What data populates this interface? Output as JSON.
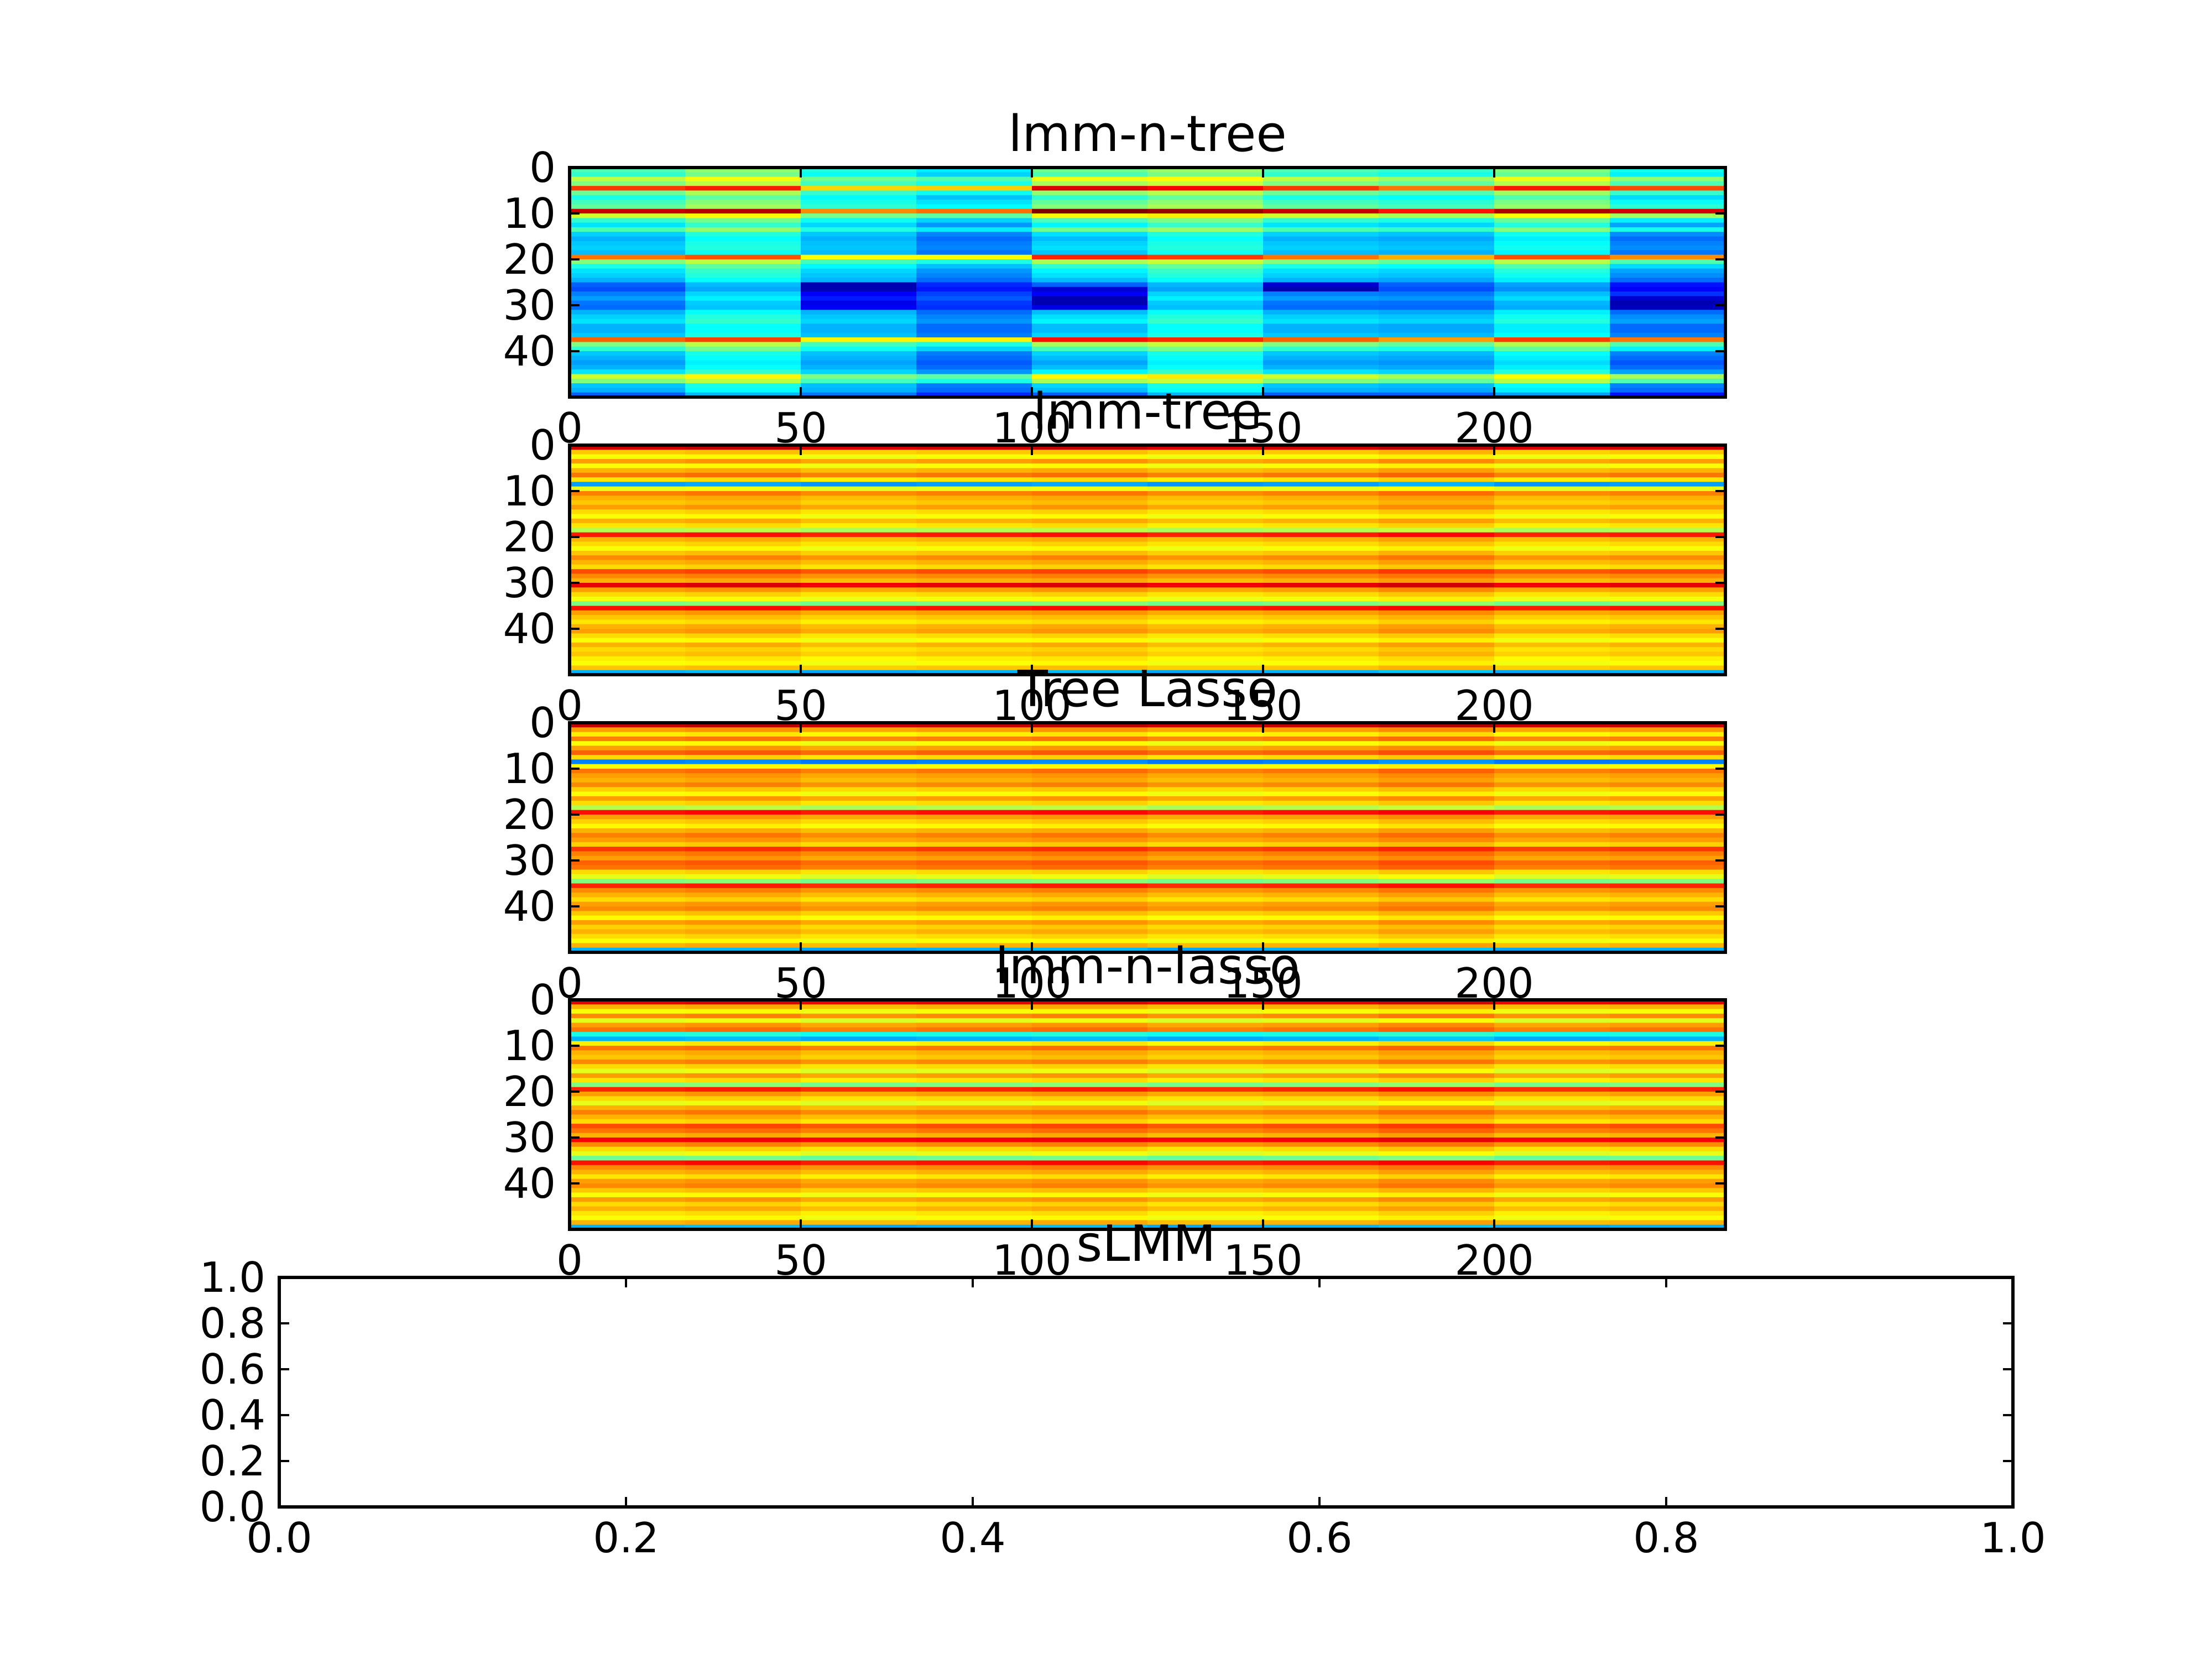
{
  "chart_data": [
    {
      "type": "heatmap",
      "title": "lmm-n-tree",
      "xlabel": "",
      "ylabel": "",
      "xlim": [
        0,
        250
      ],
      "ylim": [
        50,
        0
      ],
      "xticks": [
        0,
        50,
        100,
        150,
        200
      ],
      "yticks": [
        0,
        10,
        20,
        30,
        40
      ],
      "colormap": "jet",
      "n_rows": 50,
      "n_cols": 250,
      "column_block_width": 25,
      "value_range": [
        0,
        1
      ],
      "row_values": [
        0.45,
        0.42,
        0.56,
        0.5,
        0.82,
        0.48,
        0.4,
        0.44,
        0.47,
        0.93,
        0.58,
        0.42,
        0.35,
        0.45,
        0.33,
        0.3,
        0.32,
        0.33,
        0.31,
        0.76,
        0.5,
        0.4,
        0.35,
        0.33,
        0.3,
        0.22,
        0.2,
        0.25,
        0.28,
        0.24,
        0.23,
        0.3,
        0.33,
        0.35,
        0.3,
        0.3,
        0.32,
        0.78,
        0.5,
        0.42,
        0.32,
        0.3,
        0.28,
        0.3,
        0.35,
        0.58,
        0.5,
        0.32,
        0.3,
        0.22
      ],
      "block_offsets": [
        0,
        0.06,
        -0.06,
        -0.1,
        0.04,
        0.07,
        0,
        -0.03,
        0.05,
        -0.05
      ],
      "block_gain": [
        1,
        0.9,
        0.7,
        0.85,
        1.15,
        0.95,
        1,
        0.9,
        0.95,
        1.1
      ],
      "block_overrides": {
        "2": {
          "25": 0.05,
          "26": 0.05,
          "27": 0.12,
          "28": 0.15,
          "29": 0.1,
          "30": 0.12
        },
        "4": {
          "26": 0.08,
          "27": 0.12,
          "28": 0.05,
          "29": 0.05,
          "30": 0.1
        },
        "6": {
          "25": 0.08,
          "26": 0.05
        },
        "9": {
          "28": 0.08,
          "29": 0.05,
          "30": 0.06
        }
      }
    },
    {
      "type": "heatmap",
      "title": "lmm-tree",
      "xlabel": "",
      "ylabel": "",
      "xlim": [
        0,
        250
      ],
      "ylim": [
        50,
        0
      ],
      "xticks": [
        0,
        50,
        100,
        150,
        200
      ],
      "yticks": [
        0,
        10,
        20,
        30,
        40
      ],
      "colormap": "jet",
      "n_rows": 50,
      "n_cols": 250,
      "column_block_width": 25,
      "value_range": [
        0,
        1
      ],
      "row_values": [
        0.92,
        0.68,
        0.62,
        0.72,
        0.62,
        0.7,
        0.76,
        0.65,
        0.28,
        0.6,
        0.75,
        0.7,
        0.68,
        0.72,
        0.66,
        0.62,
        0.7,
        0.65,
        0.55,
        0.85,
        0.7,
        0.66,
        0.62,
        0.68,
        0.74,
        0.7,
        0.66,
        0.8,
        0.74,
        0.7,
        0.9,
        0.72,
        0.66,
        0.62,
        0.5,
        0.86,
        0.72,
        0.68,
        0.65,
        0.7,
        0.72,
        0.66,
        0.62,
        0.7,
        0.66,
        0.68,
        0.64,
        0.62,
        0.68,
        0.3
      ],
      "block_offsets": [
        0,
        0.01,
        -0.01,
        0,
        0.01,
        -0.01,
        0,
        0.02,
        -0.01,
        0
      ],
      "block_gain": [
        1,
        1,
        1,
        1,
        1,
        1,
        1,
        1,
        1,
        1
      ],
      "block_overrides": {}
    },
    {
      "type": "heatmap",
      "title": "Tree Lasso",
      "xlabel": "",
      "ylabel": "",
      "xlim": [
        0,
        250
      ],
      "ylim": [
        50,
        0
      ],
      "xticks": [
        0,
        50,
        100,
        150,
        200
      ],
      "yticks": [
        0,
        10,
        20,
        30,
        40
      ],
      "colormap": "jet",
      "n_rows": 50,
      "n_cols": 250,
      "column_block_width": 25,
      "value_range": [
        0,
        1
      ],
      "row_values": [
        0.93,
        0.72,
        0.64,
        0.75,
        0.62,
        0.72,
        0.78,
        0.66,
        0.25,
        0.62,
        0.76,
        0.72,
        0.7,
        0.74,
        0.67,
        0.62,
        0.72,
        0.66,
        0.55,
        0.86,
        0.72,
        0.67,
        0.63,
        0.7,
        0.75,
        0.72,
        0.67,
        0.82,
        0.75,
        0.72,
        0.78,
        0.76,
        0.66,
        0.6,
        0.5,
        0.84,
        0.74,
        0.7,
        0.66,
        0.72,
        0.74,
        0.68,
        0.63,
        0.72,
        0.67,
        0.7,
        0.66,
        0.62,
        0.7,
        0.3
      ],
      "block_offsets": [
        0,
        0.01,
        -0.01,
        0,
        0.01,
        -0.01,
        0,
        0.02,
        -0.01,
        0
      ],
      "block_gain": [
        1,
        1,
        1,
        1,
        1,
        1,
        1,
        1,
        1,
        1
      ],
      "block_overrides": {}
    },
    {
      "type": "heatmap",
      "title": "lmm-n-lasso",
      "xlabel": "",
      "ylabel": "",
      "xlim": [
        0,
        250
      ],
      "ylim": [
        50,
        0
      ],
      "xticks": [
        0,
        50,
        100,
        150,
        200
      ],
      "yticks": [
        0,
        10,
        20,
        30,
        40
      ],
      "colormap": "jet",
      "n_rows": 50,
      "n_cols": 250,
      "column_block_width": 25,
      "value_range": [
        0,
        1
      ],
      "row_values": [
        0.9,
        0.7,
        0.62,
        0.74,
        0.6,
        0.72,
        0.76,
        0.4,
        0.3,
        0.64,
        0.76,
        0.7,
        0.68,
        0.74,
        0.66,
        0.6,
        0.72,
        0.65,
        0.5,
        0.84,
        0.72,
        0.66,
        0.6,
        0.7,
        0.75,
        0.7,
        0.66,
        0.8,
        0.76,
        0.7,
        0.88,
        0.74,
        0.66,
        0.6,
        0.48,
        0.86,
        0.74,
        0.7,
        0.65,
        0.72,
        0.74,
        0.68,
        0.62,
        0.72,
        0.66,
        0.7,
        0.65,
        0.62,
        0.7,
        0.3
      ],
      "block_offsets": [
        0,
        0.01,
        -0.01,
        0,
        0.01,
        -0.01,
        0,
        0.02,
        -0.01,
        0
      ],
      "block_gain": [
        1,
        1,
        1,
        1,
        1,
        1,
        1,
        1,
        1,
        1
      ],
      "block_overrides": {}
    },
    {
      "type": "line",
      "title": "sLMM",
      "xlabel": "",
      "ylabel": "",
      "xlim": [
        0,
        1
      ],
      "ylim": [
        0,
        1
      ],
      "xticks": [
        "0.0",
        "0.2",
        "0.4",
        "0.6",
        "0.8",
        "1.0"
      ],
      "yticks": [
        "0.0",
        "0.2",
        "0.4",
        "0.6",
        "0.8",
        "1.0"
      ],
      "series": []
    }
  ]
}
